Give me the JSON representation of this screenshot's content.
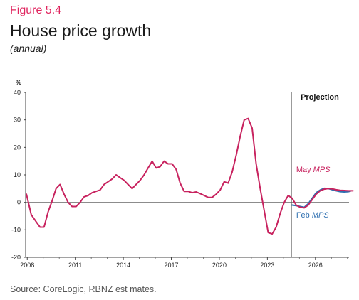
{
  "figure_label": "Figure 5.4",
  "title": "House price growth",
  "subtitle": "(annual)",
  "source": "Source: CoreLogic, RBNZ est mates.",
  "colors": {
    "may": "#c8235f",
    "feb": "#2e6fb0",
    "figure_label": "#e0245e"
  },
  "chart_data": {
    "type": "line",
    "title": "House price growth",
    "subtitle": "(annual)",
    "unit_label": "%",
    "xlim": [
      2007.9,
      2028.1
    ],
    "ylim": [
      -20,
      40
    ],
    "yticks": [
      40,
      30,
      20,
      10,
      0,
      -10,
      -20
    ],
    "xticks": [
      2008,
      2011,
      2014,
      2017,
      2020,
      2023,
      2026
    ],
    "xtick_labels": [
      "2008",
      "2011",
      "2014",
      "2017",
      "2020",
      "2023",
      "2026"
    ],
    "projection_start": 2024.5,
    "projection_label": "Projection",
    "series": [
      {
        "name": "May MPS",
        "label_prefix": "May ",
        "label_italic": "MPS",
        "color": "#c8235f",
        "points": [
          [
            2007.95,
            3
          ],
          [
            2008.25,
            -4.5
          ],
          [
            2008.55,
            -7
          ],
          [
            2008.8,
            -9
          ],
          [
            2009.05,
            -9
          ],
          [
            2009.3,
            -3.5
          ],
          [
            2009.55,
            0.5
          ],
          [
            2009.8,
            5
          ],
          [
            2010.05,
            6.5
          ],
          [
            2010.3,
            3
          ],
          [
            2010.55,
            0
          ],
          [
            2010.8,
            -1.5
          ],
          [
            2011.05,
            -1.5
          ],
          [
            2011.3,
            0
          ],
          [
            2011.55,
            2
          ],
          [
            2011.8,
            2.5
          ],
          [
            2012.05,
            3.5
          ],
          [
            2012.3,
            4
          ],
          [
            2012.55,
            4.5
          ],
          [
            2012.8,
            6.5
          ],
          [
            2013.05,
            7.5
          ],
          [
            2013.3,
            8.5
          ],
          [
            2013.55,
            10
          ],
          [
            2013.8,
            9
          ],
          [
            2014.05,
            8
          ],
          [
            2014.3,
            6.5
          ],
          [
            2014.55,
            5
          ],
          [
            2014.8,
            6.5
          ],
          [
            2015.05,
            8
          ],
          [
            2015.3,
            10
          ],
          [
            2015.55,
            12.5
          ],
          [
            2015.8,
            15
          ],
          [
            2016.05,
            12.5
          ],
          [
            2016.3,
            13
          ],
          [
            2016.55,
            15
          ],
          [
            2016.8,
            14
          ],
          [
            2017.05,
            14
          ],
          [
            2017.3,
            12
          ],
          [
            2017.55,
            7
          ],
          [
            2017.8,
            4
          ],
          [
            2018.05,
            4
          ],
          [
            2018.3,
            3.5
          ],
          [
            2018.55,
            3.8
          ],
          [
            2018.8,
            3.2
          ],
          [
            2019.05,
            2.5
          ],
          [
            2019.3,
            1.8
          ],
          [
            2019.55,
            1.8
          ],
          [
            2019.8,
            3
          ],
          [
            2020.05,
            4.5
          ],
          [
            2020.3,
            7.5
          ],
          [
            2020.55,
            7
          ],
          [
            2020.8,
            11
          ],
          [
            2021.05,
            17
          ],
          [
            2021.3,
            24
          ],
          [
            2021.55,
            30
          ],
          [
            2021.8,
            30.5
          ],
          [
            2022.05,
            27
          ],
          [
            2022.3,
            14
          ],
          [
            2022.55,
            5
          ],
          [
            2022.8,
            -3
          ],
          [
            2023.05,
            -11
          ],
          [
            2023.3,
            -11.5
          ],
          [
            2023.55,
            -9
          ],
          [
            2023.8,
            -4
          ],
          [
            2024.05,
            0
          ],
          [
            2024.3,
            2.5
          ],
          [
            2024.55,
            1.5
          ],
          [
            2024.8,
            -1
          ],
          [
            2025.05,
            -1.8
          ],
          [
            2025.3,
            -2
          ],
          [
            2025.55,
            -1
          ],
          [
            2025.8,
            1
          ],
          [
            2026.05,
            3
          ],
          [
            2026.3,
            4.2
          ],
          [
            2026.55,
            4.8
          ],
          [
            2026.8,
            5
          ],
          [
            2027.05,
            4.9
          ],
          [
            2027.3,
            4.6
          ],
          [
            2027.55,
            4.4
          ],
          [
            2027.8,
            4.3
          ],
          [
            2028.05,
            4.2
          ],
          [
            2028.35,
            4.2
          ]
        ]
      },
      {
        "name": "Feb MPS",
        "label_prefix": "Feb ",
        "label_italic": "MPS",
        "color": "#2e6fb0",
        "points": [
          [
            2024.55,
            -1
          ],
          [
            2024.8,
            -1.2
          ],
          [
            2025.05,
            -1.5
          ],
          [
            2025.3,
            -1.8
          ],
          [
            2025.55,
            -0.5
          ],
          [
            2025.8,
            1.5
          ],
          [
            2026.05,
            3.5
          ],
          [
            2026.3,
            4.5
          ],
          [
            2026.55,
            5.1
          ],
          [
            2026.8,
            5
          ],
          [
            2027.05,
            4.6
          ],
          [
            2027.3,
            4.2
          ],
          [
            2027.55,
            3.9
          ],
          [
            2027.8,
            3.8
          ],
          [
            2028.05,
            3.9
          ],
          [
            2028.2,
            4.1
          ]
        ]
      }
    ]
  }
}
